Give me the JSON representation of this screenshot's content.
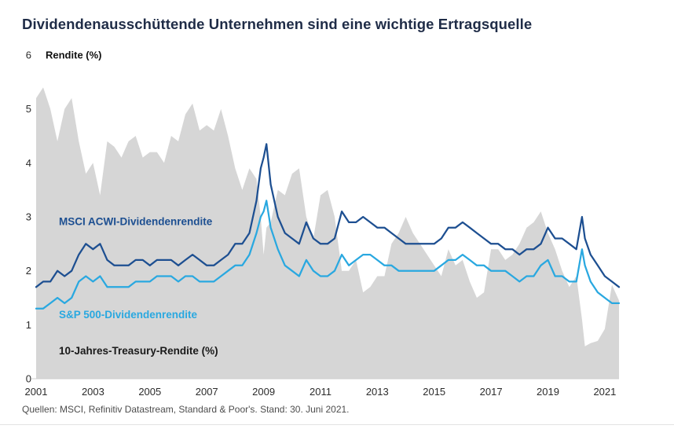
{
  "page": {
    "title": "Dividendenausschüttende Unternehmen sind eine wichtige Ertragsquelle",
    "source_note": "Quellen: MSCI, Refinitiv Datastream, Standard & Poor's. Stand: 30. Juni 2021."
  },
  "colors": {
    "title_text": "#1f2c47",
    "msci_line": "#1d4f91",
    "sp500_line": "#29a8e0",
    "treasury_fill": "#d6d6d6",
    "axis_text": "#2b2b2b",
    "source_text": "#4d4d4d"
  },
  "chart_data": {
    "type": "area+line",
    "title": "Dividendenausschüttende Unternehmen sind eine wichtige Ertragsquelle",
    "ylabel": "Rendite (%)",
    "xlabel": "",
    "ylim": [
      0,
      6
    ],
    "xlim": [
      2001,
      2021.5
    ],
    "y_ticks": [
      0,
      1,
      2,
      3,
      4,
      5,
      6
    ],
    "x_ticks": [
      2001,
      2003,
      2005,
      2007,
      2009,
      2011,
      2013,
      2015,
      2017,
      2019,
      2021
    ],
    "grid": false,
    "legend_position": "inside-left-as-annotations",
    "x": [
      2001.0,
      2001.25,
      2001.5,
      2001.75,
      2002.0,
      2002.25,
      2002.5,
      2002.75,
      2003.0,
      2003.25,
      2003.5,
      2003.75,
      2004.0,
      2004.25,
      2004.5,
      2004.75,
      2005.0,
      2005.25,
      2005.5,
      2005.75,
      2006.0,
      2006.25,
      2006.5,
      2006.75,
      2007.0,
      2007.25,
      2007.5,
      2007.75,
      2008.0,
      2008.25,
      2008.5,
      2008.75,
      2008.9,
      2009.0,
      2009.1,
      2009.25,
      2009.5,
      2009.75,
      2010.0,
      2010.25,
      2010.5,
      2010.75,
      2011.0,
      2011.25,
      2011.5,
      2011.75,
      2012.0,
      2012.25,
      2012.5,
      2012.75,
      2013.0,
      2013.25,
      2013.5,
      2013.75,
      2014.0,
      2014.25,
      2014.5,
      2014.75,
      2015.0,
      2015.25,
      2015.5,
      2015.75,
      2016.0,
      2016.25,
      2016.5,
      2016.75,
      2017.0,
      2017.25,
      2017.5,
      2017.75,
      2018.0,
      2018.25,
      2018.5,
      2018.75,
      2019.0,
      2019.25,
      2019.5,
      2019.75,
      2020.0,
      2020.2,
      2020.3,
      2020.5,
      2020.75,
      2021.0,
      2021.25,
      2021.5
    ],
    "series": [
      {
        "name": "10-Jahres-Treasury-Rendite (%)",
        "type": "area",
        "color": "#d6d6d6",
        "values": [
          5.2,
          5.4,
          5.0,
          4.4,
          5.0,
          5.2,
          4.4,
          3.8,
          4.0,
          3.4,
          4.4,
          4.3,
          4.1,
          4.4,
          4.5,
          4.1,
          4.2,
          4.2,
          4.0,
          4.5,
          4.4,
          4.9,
          5.1,
          4.6,
          4.7,
          4.6,
          5.0,
          4.5,
          3.9,
          3.5,
          3.9,
          3.7,
          3.0,
          2.3,
          2.8,
          2.9,
          3.5,
          3.4,
          3.8,
          3.9,
          3.0,
          2.6,
          3.4,
          3.5,
          3.0,
          2.0,
          2.0,
          2.2,
          1.6,
          1.7,
          1.9,
          1.9,
          2.5,
          2.7,
          3.0,
          2.7,
          2.5,
          2.3,
          2.1,
          1.9,
          2.4,
          2.1,
          2.2,
          1.8,
          1.5,
          1.6,
          2.4,
          2.4,
          2.2,
          2.3,
          2.5,
          2.8,
          2.9,
          3.1,
          2.7,
          2.4,
          2.0,
          1.7,
          1.9,
          1.1,
          0.6,
          0.66,
          0.7,
          0.92,
          1.74,
          1.45
        ]
      },
      {
        "name": "MSCI ACWI-Dividendenrendite",
        "type": "line",
        "color": "#1d4f91",
        "values": [
          1.7,
          1.8,
          1.8,
          2.0,
          1.9,
          2.0,
          2.3,
          2.5,
          2.4,
          2.5,
          2.2,
          2.1,
          2.1,
          2.1,
          2.2,
          2.2,
          2.1,
          2.2,
          2.2,
          2.2,
          2.1,
          2.2,
          2.3,
          2.2,
          2.1,
          2.1,
          2.2,
          2.3,
          2.5,
          2.5,
          2.7,
          3.3,
          3.9,
          4.1,
          4.35,
          3.6,
          3.0,
          2.7,
          2.6,
          2.5,
          2.9,
          2.6,
          2.5,
          2.5,
          2.6,
          3.1,
          2.9,
          2.9,
          3.0,
          2.9,
          2.8,
          2.8,
          2.7,
          2.6,
          2.5,
          2.5,
          2.5,
          2.5,
          2.5,
          2.6,
          2.8,
          2.8,
          2.9,
          2.8,
          2.7,
          2.6,
          2.5,
          2.5,
          2.4,
          2.4,
          2.3,
          2.4,
          2.4,
          2.5,
          2.8,
          2.6,
          2.6,
          2.5,
          2.4,
          3.0,
          2.6,
          2.3,
          2.1,
          1.9,
          1.8,
          1.7
        ]
      },
      {
        "name": "S&P 500-Dividendenrendite",
        "type": "line",
        "color": "#29a8e0",
        "values": [
          1.3,
          1.3,
          1.4,
          1.5,
          1.4,
          1.5,
          1.8,
          1.9,
          1.8,
          1.9,
          1.7,
          1.7,
          1.7,
          1.7,
          1.8,
          1.8,
          1.8,
          1.9,
          1.9,
          1.9,
          1.8,
          1.9,
          1.9,
          1.8,
          1.8,
          1.8,
          1.9,
          2.0,
          2.1,
          2.1,
          2.3,
          2.7,
          3.0,
          3.1,
          3.3,
          2.8,
          2.4,
          2.1,
          2.0,
          1.9,
          2.2,
          2.0,
          1.9,
          1.9,
          2.0,
          2.3,
          2.1,
          2.2,
          2.3,
          2.3,
          2.2,
          2.1,
          2.1,
          2.0,
          2.0,
          2.0,
          2.0,
          2.0,
          2.0,
          2.1,
          2.2,
          2.2,
          2.3,
          2.2,
          2.1,
          2.1,
          2.0,
          2.0,
          2.0,
          1.9,
          1.8,
          1.9,
          1.9,
          2.1,
          2.2,
          1.9,
          1.9,
          1.8,
          1.8,
          2.4,
          2.1,
          1.8,
          1.6,
          1.5,
          1.4,
          1.4
        ]
      }
    ],
    "annotations": [
      {
        "label": "MSCI ACWI-Dividendenrendite",
        "x": 2001.8,
        "y": 2.85,
        "color": "#1d4f91"
      },
      {
        "label": "S&P 500-Dividendenrendite",
        "x": 2001.8,
        "y": 1.12,
        "color": "#29a8e0"
      },
      {
        "label": "10-Jahres-Treasury-Rendite (%)",
        "x": 2001.8,
        "y": 0.45,
        "color": "#1a1a1a"
      }
    ]
  }
}
